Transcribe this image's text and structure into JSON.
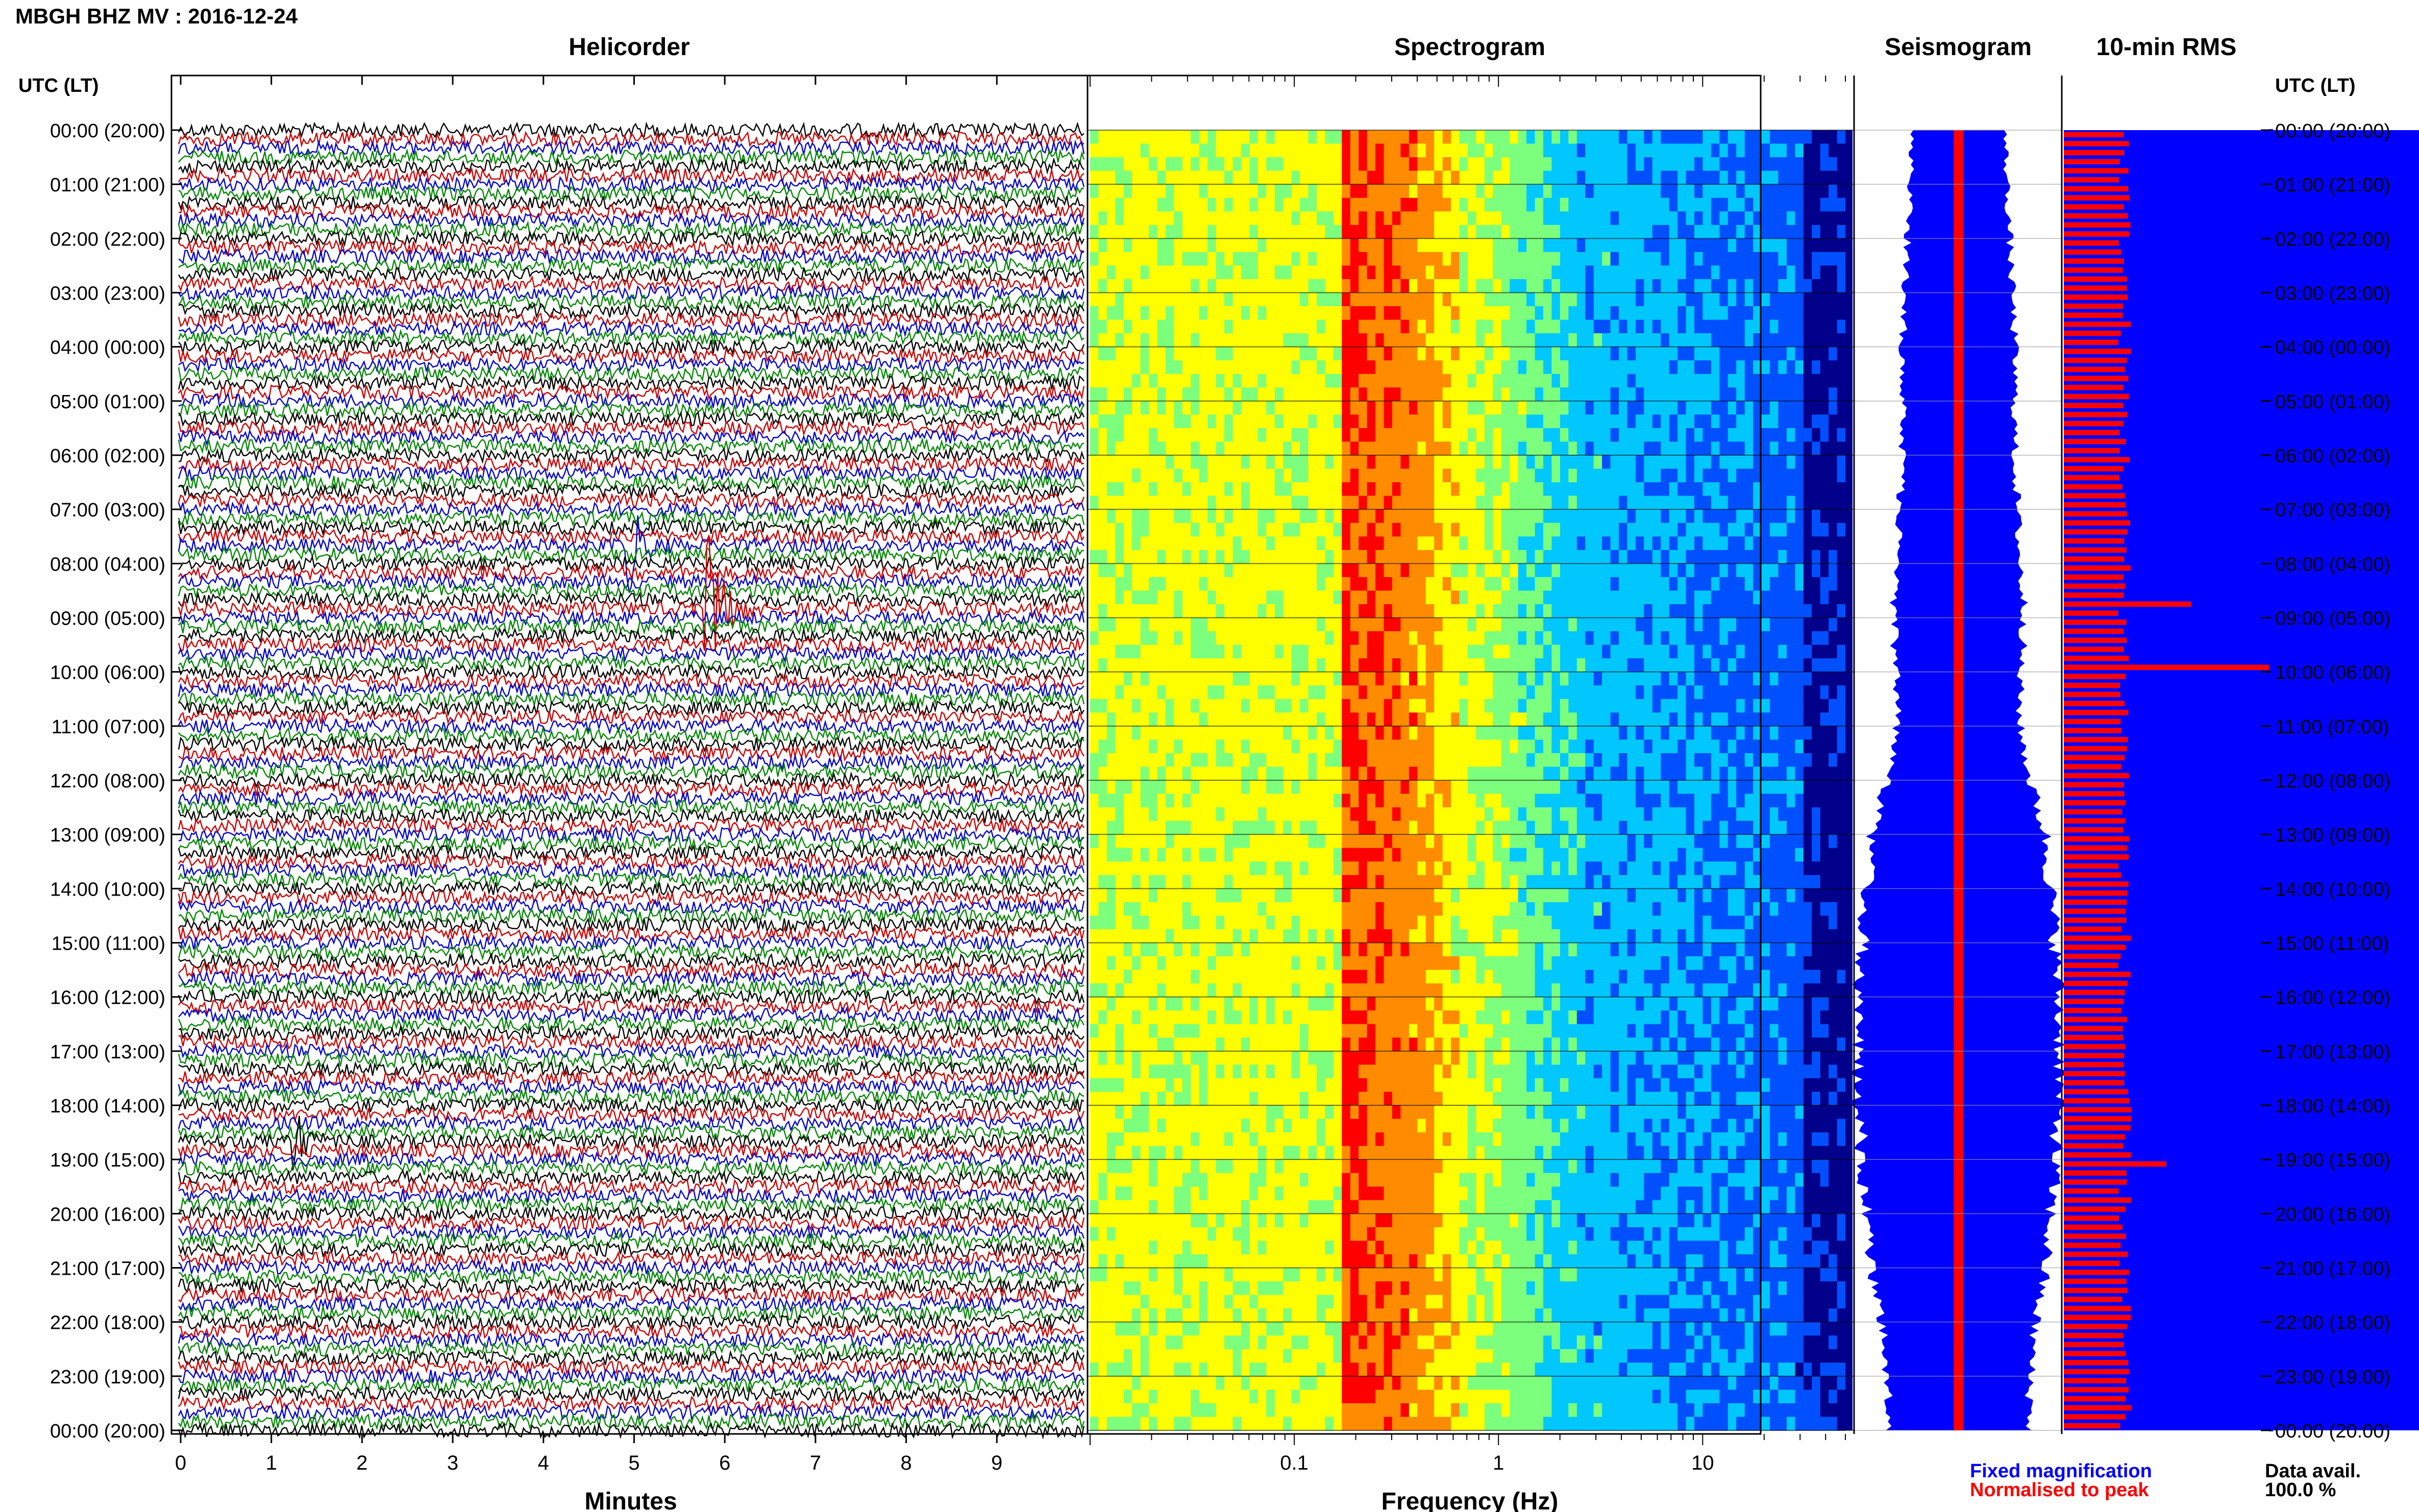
{
  "page_title": "MBGH BHZ MV : 2016-12-24",
  "time_header": "UTC (LT)",
  "time_labels": [
    "00:00 (20:00)",
    "01:00 (21:00)",
    "02:00 (22:00)",
    "03:00 (23:00)",
    "04:00 (00:00)",
    "05:00 (01:00)",
    "06:00 (02:00)",
    "07:00 (03:00)",
    "08:00 (04:00)",
    "09:00 (05:00)",
    "10:00 (06:00)",
    "11:00 (07:00)",
    "12:00 (08:00)",
    "13:00 (09:00)",
    "14:00 (10:00)",
    "15:00 (11:00)",
    "16:00 (12:00)",
    "17:00 (13:00)",
    "18:00 (14:00)",
    "19:00 (15:00)",
    "20:00 (16:00)",
    "21:00 (17:00)",
    "22:00 (18:00)",
    "23:00 (19:00)",
    "00:00 (20:00)"
  ],
  "legend": {
    "fixed": "Fixed magnification",
    "normalised": "Normalised to peak",
    "data_avail_label": "Data avail.",
    "data_avail_value": "100.0 %"
  },
  "colors": {
    "trace_cycle": [
      "#000000",
      "#cc0000",
      "#0000cc",
      "#008800"
    ],
    "blue": "#0000ff",
    "red": "#ff0000"
  },
  "chart_data": [
    {
      "type": "line",
      "title": "Helicorder",
      "xlabel": "Minutes",
      "ylabel": "",
      "xlim": [
        0,
        10
      ],
      "x_ticks": [
        0,
        1,
        2,
        3,
        4,
        5,
        6,
        7,
        8,
        9
      ],
      "rows": 144,
      "events": [
        {
          "time_utc": "07:40",
          "minute": 5.0,
          "amplitude_rows": 5
        },
        {
          "time_utc": "08:50",
          "minute": 5.85,
          "amplitude_rows": 9
        },
        {
          "time_utc": "18:40",
          "minute": 1.3,
          "amplitude_rows": 3
        }
      ]
    },
    {
      "type": "heatmap",
      "title": "Spectrogram",
      "xlabel": "Frequency (Hz)",
      "xscale": "log",
      "xlim": [
        0.01,
        50
      ],
      "x_ticks": [
        0.1,
        1,
        10
      ],
      "x_tick_labels": [
        "0.1",
        "1",
        "10"
      ],
      "color_scale": [
        "#00008b",
        "#0050ff",
        "#00c8ff",
        "#7cff7c",
        "#ffff00",
        "#ff8c00",
        "#ff0000"
      ],
      "peak_band_hz": [
        0.17,
        0.5
      ]
    },
    {
      "type": "area",
      "title": "Seismogram",
      "series": [
        {
          "name": "Fixed magnification",
          "color": "#0000ff",
          "x_hours": [
            0,
            2,
            4,
            6,
            8,
            9,
            10,
            11,
            12,
            13,
            14,
            15,
            16,
            17,
            18,
            19,
            20,
            21,
            22,
            23,
            24
          ],
          "values": [
            0.45,
            0.5,
            0.55,
            0.55,
            0.6,
            0.65,
            0.6,
            0.6,
            0.7,
            0.85,
            0.9,
            0.95,
            0.98,
            1.0,
            0.98,
            0.95,
            0.9,
            0.85,
            0.75,
            0.7,
            0.7
          ]
        },
        {
          "name": "Normalised to peak",
          "color": "#ff0000",
          "x_hours": [
            0,
            6,
            12,
            18,
            24
          ],
          "values": [
            0.15,
            0.15,
            0.14,
            0.13,
            0.15
          ]
        }
      ]
    },
    {
      "type": "bar",
      "title": "10-min RMS",
      "series": [
        {
          "name": "Normalised to peak",
          "color": "#ff0000",
          "bars": 144,
          "typical": 0.3,
          "peaks": [
            {
              "time_utc": "08:40",
              "value": 0.62
            },
            {
              "time_utc": "09:50",
              "value": 1.0
            },
            {
              "time_utc": "19:00",
              "value": 0.5
            }
          ]
        }
      ],
      "background": "#0000ff"
    }
  ]
}
